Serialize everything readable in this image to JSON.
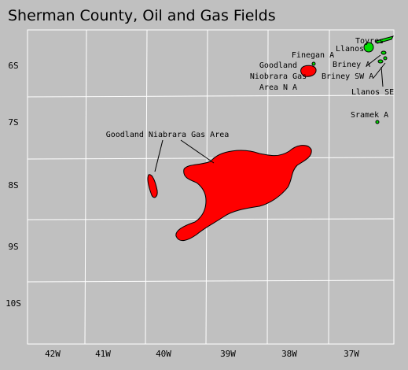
{
  "title": "Sherman County, Oil and Gas Fields",
  "townships": [
    "6S",
    "7S",
    "8S",
    "9S",
    "10S"
  ],
  "ranges": [
    "42W",
    "41W",
    "40W",
    "39W",
    "38W",
    "37W"
  ],
  "fields": {
    "goodland_niobrara": "Goodland Niabrara Gas Area",
    "goodland_niobrara_na": [
      "Goodland",
      "Niobrara Gas",
      "Area N A"
    ],
    "finegan": "Finegan A",
    "toyres": "Toyres",
    "llanos": "Llanos",
    "briney": "Briney A",
    "briney_sw": "Briney SW A",
    "llanos_se": "Llanos SE",
    "sramek": "Sramek A"
  }
}
